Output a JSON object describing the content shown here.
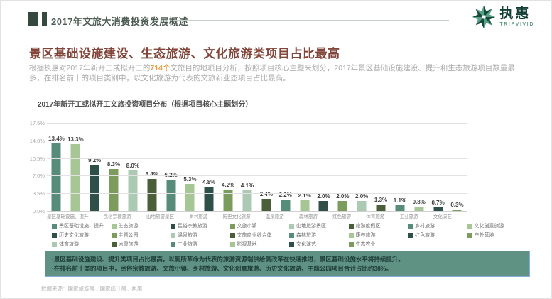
{
  "header": {
    "section_title": "2017年文旅大消费投资发展概述",
    "logo": {
      "name": "执惠",
      "subtitle": "TRIPVIVID"
    }
  },
  "intro": {
    "title": "景区基础设施建设、生态旅游、文化旅游类项目占比最高",
    "text_before": "根据执惠对2017年新开工或拟开工的",
    "highlight": "714个",
    "text_after": "文旅目的地项目分析，按照项目核心主题来划分，2017年景区基础设施建设、提升和生态旅游项目数量最多，在排名前十的项目类别中，以文化旅游为代表的文旅新业态项目占比最高。",
    "title_color": "#82453A",
    "highlight_color": "#EC9A3D"
  },
  "chart_data": {
    "type": "bar",
    "title": "2017年新开工或拟开工文旅投资项目分布（根据项目核心主题划分）",
    "categories": [
      "景区基础设施、提升",
      "生态旅游",
      "民俗宗教旅游",
      "文旅小镇",
      "山地旅游景区",
      "旅游度假区",
      "乡村旅游",
      "文化创意旅游",
      "历史文化旅游",
      "主题公园",
      "温泉旅游",
      "文旅商业综合体",
      "森林旅游",
      "康养旅游",
      "红色旅游",
      "户外营地",
      "体育旅游",
      "冰雪旅游",
      "工业旅游",
      "影视基地",
      "文化演艺",
      "生态农业"
    ],
    "values": [
      13.4,
      13.3,
      9.2,
      8.3,
      8.0,
      6.4,
      6.2,
      5.3,
      4.8,
      4.2,
      4.1,
      2.4,
      2.2,
      2.1,
      2.0,
      2.0,
      2.0,
      1.3,
      1.1,
      0.8,
      0.7,
      0.3
    ],
    "unit": "%",
    "ylim": [
      0,
      17.5
    ],
    "yticks": [
      17.5,
      14.0,
      10.5,
      7.0,
      3.5,
      0.0
    ],
    "grid": true,
    "xtick_interval": 2,
    "legend_position": "bottom",
    "legend_columns": 8,
    "palette": [
      "#578C7A",
      "#A6C795",
      "#2F5048",
      "#7C9C5E",
      "#ACCAB3",
      "#4A5E39"
    ]
  },
  "callout": {
    "bg_color": "#5F9282",
    "border_color": "#86AEDB",
    "bullets": [
      "·景区基础设施建设、提升类项目占比最高，以厕所革命为代表的旅游资源端供给侧改革在快速推进，景区基础设施水平将持续提升。",
      "·在排名前十类的项目中，民俗宗教旅游、文旅小镇、乡村旅游、文化创意旅游、历史文化旅游、主题公园项目合计占比约38%。"
    ]
  },
  "footer": {
    "source": "数据来源：国家旅游局、国家统计局、执惠"
  }
}
